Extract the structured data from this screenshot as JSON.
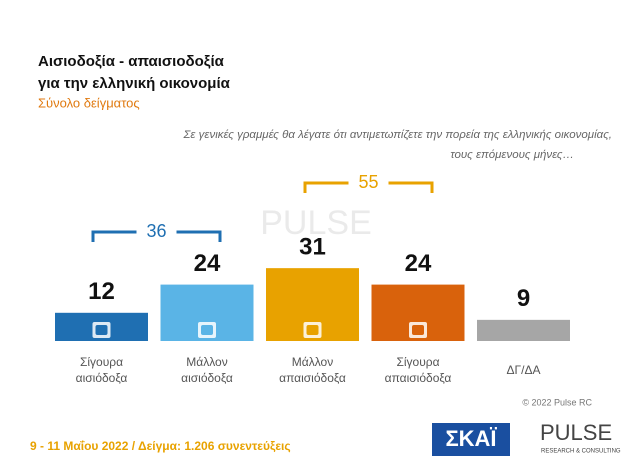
{
  "chart_data": {
    "type": "bar",
    "title": [
      "Αισιοδοξία - απαισιοδοξία",
      "για την ελληνική οικονομία"
    ],
    "subtitle": "Σύνολο δείγματος",
    "question": [
      "Σε γενικές γραμμές θα λέγατε ότι αντιμετωπίζετε την πορεία της ελληνικής οικονομίας,",
      "τους επόμενους μήνες…"
    ],
    "categories": [
      [
        "Σίγουρα",
        "αισιόδοξα"
      ],
      [
        "Μάλλον",
        "αισιόδοξα"
      ],
      [
        "Μάλλον",
        "απαισιόδοξα"
      ],
      [
        "Σίγουρα",
        "απαισιόδοξα"
      ],
      [
        "ΔΓ/ΔΑ"
      ]
    ],
    "values": [
      12,
      24,
      31,
      24,
      9
    ],
    "colors": [
      "#1f6fb2",
      "#5ab4e6",
      "#e8a200",
      "#d9620c",
      "#a6a6a6"
    ],
    "brackets": [
      {
        "value": 36,
        "color": "#1f6fb2"
      },
      {
        "value": 55,
        "color": "#e8a200"
      }
    ],
    "footer": "9 - 11 Μαΐου 2022  /  Δείγμα:  1.206 συνεντεύξεις",
    "copyright": "© 2022 Pulse RC",
    "logos": {
      "skai": "ΣΚΑΪ",
      "pulse": "PULSE",
      "pulse_sub": "RESEARCH & CONSULTING"
    }
  }
}
